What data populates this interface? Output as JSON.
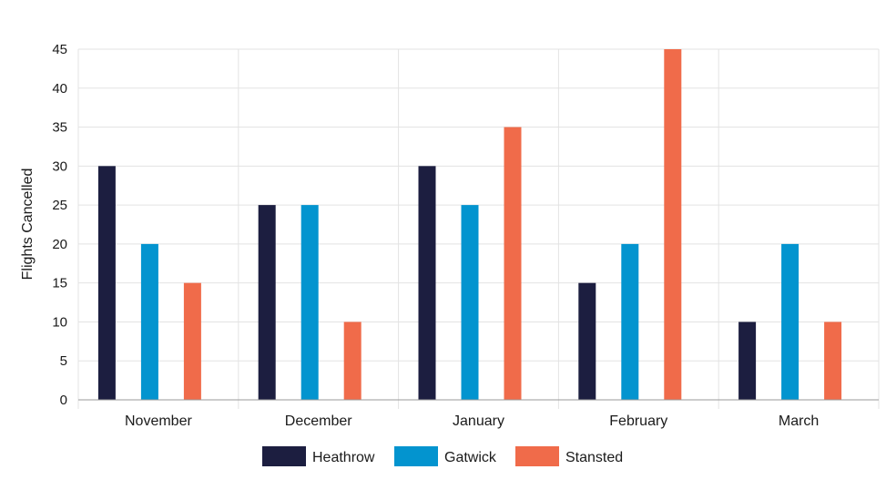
{
  "chart_data": {
    "type": "bar",
    "title": "",
    "xlabel": "",
    "ylabel": "Flights Cancelled",
    "ylim": [
      0,
      45
    ],
    "yticks": [
      "0",
      "5",
      "10",
      "15",
      "20",
      "25",
      "30",
      "35",
      "40",
      "45"
    ],
    "categories": [
      "November",
      "December",
      "January",
      "February",
      "March"
    ],
    "series": [
      {
        "name": "Heathrow",
        "color": "#1c1e40",
        "values": [
          30,
          25,
          30,
          15,
          10
        ]
      },
      {
        "name": "Gatwick",
        "color": "#0394cf",
        "values": [
          20,
          25,
          25,
          20,
          20
        ]
      },
      {
        "name": "Stansted",
        "color": "#f06b4a",
        "values": [
          15,
          10,
          35,
          45,
          10
        ]
      }
    ],
    "grid": true,
    "legend_position": "bottom"
  }
}
